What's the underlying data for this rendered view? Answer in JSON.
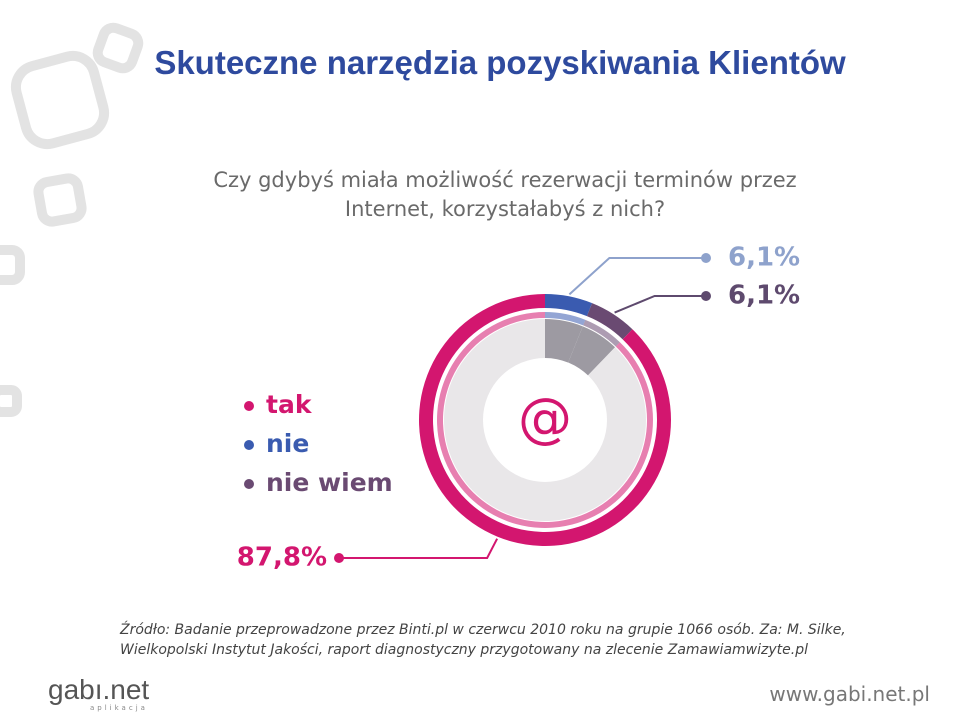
{
  "chart_data": {
    "type": "pie",
    "title": "Skuteczne narzędzia pozyskiwania Klientów",
    "subtitle": "Czy gdybyś miała możliwość rezerwacji terminów przez Internet, korzystałabyś z nich?",
    "categories": [
      "tak",
      "nie",
      "nie wiem"
    ],
    "values": [
      87.8,
      6.1,
      6.1
    ],
    "value_labels": [
      "87,8%",
      "6,1%",
      "6,1%"
    ],
    "colors": [
      "#d3166f",
      "#3a5bb0",
      "#6a4a72"
    ],
    "center_label": "@",
    "source": "Źródło: Badanie przeprowadzone przez Binti.pl w czerwcu 2010 roku na grupie 1066 osób. Za: M. Silke, Wielkopolski Instytut Jakości, raport diagnostyczny przygotowany na zlecenie Zamawiamwizyte.pl"
  },
  "footer": {
    "logo": "gabı.net",
    "tagline": "aplikacja",
    "url": "www.gabi.net.pl"
  }
}
